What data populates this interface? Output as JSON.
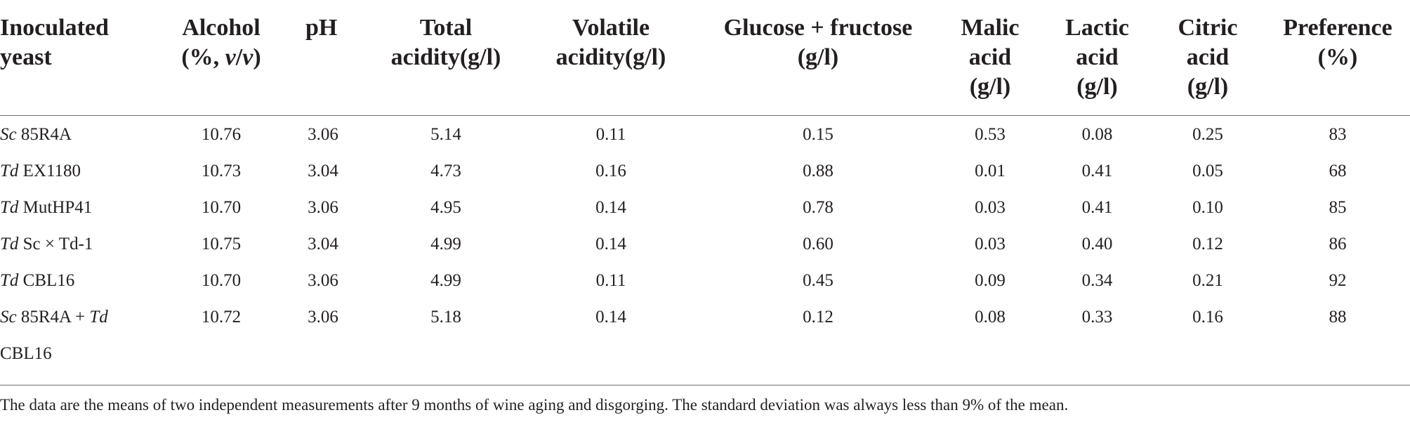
{
  "table": {
    "columns": [
      {
        "key": "yeast",
        "label_lines": [
          "Inoculated",
          "yeast"
        ]
      },
      {
        "key": "alcohol",
        "label_lines": [
          "Alcohol",
          "(%, v/v)"
        ]
      },
      {
        "key": "ph",
        "label_lines": [
          "pH"
        ]
      },
      {
        "key": "total_acidity",
        "label_lines": [
          "Total",
          "acidity(g/l)"
        ]
      },
      {
        "key": "volatile_acidity",
        "label_lines": [
          "Volatile",
          "acidity(g/l)"
        ]
      },
      {
        "key": "glucose_fructose",
        "label_lines": [
          "Glucose + fructose",
          "(g/l)"
        ]
      },
      {
        "key": "malic",
        "label_lines": [
          "Malic",
          "acid",
          "(g/l)"
        ]
      },
      {
        "key": "lactic",
        "label_lines": [
          "Lactic",
          "acid",
          "(g/l)"
        ]
      },
      {
        "key": "citric",
        "label_lines": [
          "Citric",
          "acid",
          "(g/l)"
        ]
      },
      {
        "key": "preference",
        "label_lines": [
          "Preference",
          "(%)"
        ]
      }
    ],
    "rows": [
      {
        "yeast_italic": "Sc",
        "yeast_rest": " 85R4A",
        "alcohol": "10.76",
        "ph": "3.06",
        "total_acidity": "5.14",
        "volatile_acidity": "0.11",
        "glucose_fructose": "0.15",
        "malic": "0.53",
        "lactic": "0.08",
        "citric": "0.25",
        "preference": "83"
      },
      {
        "yeast_italic": "Td",
        "yeast_rest": " EX1180",
        "alcohol": "10.73",
        "ph": "3.04",
        "total_acidity": "4.73",
        "volatile_acidity": "0.16",
        "glucose_fructose": "0.88",
        "malic": "0.01",
        "lactic": "0.41",
        "citric": "0.05",
        "preference": "68"
      },
      {
        "yeast_italic": "Td",
        "yeast_rest": " MutHP41",
        "alcohol": "10.70",
        "ph": "3.06",
        "total_acidity": "4.95",
        "volatile_acidity": "0.14",
        "glucose_fructose": "0.78",
        "malic": "0.03",
        "lactic": "0.41",
        "citric": "0.10",
        "preference": "85"
      },
      {
        "yeast_italic": "Td",
        "yeast_rest": " Sc × Td-1",
        "alcohol": "10.75",
        "ph": "3.04",
        "total_acidity": "4.99",
        "volatile_acidity": "0.14",
        "glucose_fructose": "0.60",
        "malic": "0.03",
        "lactic": "0.40",
        "citric": "0.12",
        "preference": "86"
      },
      {
        "yeast_italic": "Td",
        "yeast_rest": " CBL16",
        "alcohol": "10.70",
        "ph": "3.06",
        "total_acidity": "4.99",
        "volatile_acidity": "0.11",
        "glucose_fructose": "0.45",
        "malic": "0.09",
        "lactic": "0.34",
        "citric": "0.21",
        "preference": "92"
      },
      {
        "yeast_italic": "Sc",
        "yeast_rest": " 85R4A + ",
        "yeast_italic2": "Td",
        "yeast_line2": "CBL16",
        "alcohol": "10.72",
        "ph": "3.06",
        "total_acidity": "5.18",
        "volatile_acidity": "0.14",
        "glucose_fructose": "0.12",
        "malic": "0.08",
        "lactic": "0.33",
        "citric": "0.16",
        "preference": "88"
      }
    ]
  },
  "footnote": "The data are the means of two independent measurements after 9 months of wine aging and disgorging. The standard deviation was always less than 9% of the mean."
}
